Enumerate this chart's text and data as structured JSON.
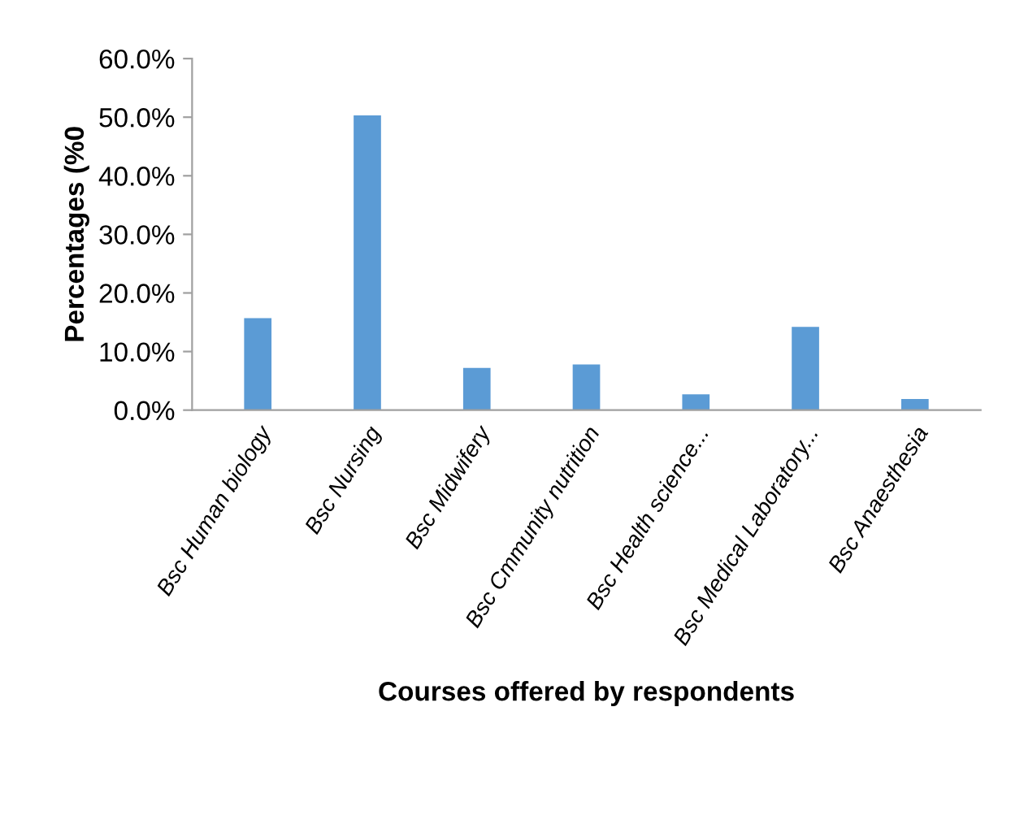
{
  "chart_data": {
    "type": "bar",
    "xlabel": "Courses offered by respondents",
    "ylabel": "Percentages (%0",
    "categories": [
      "Bsc Human biology",
      "Bsc Nursing",
      "Bsc Midwifery",
      "Bsc Cmmunity nutrition",
      "Bsc Health science...",
      "Bsc Medical Laboratory...",
      "Bsc Anaesthesia"
    ],
    "values": [
      15.7,
      50.3,
      7.2,
      7.8,
      2.7,
      14.2,
      1.9
    ],
    "color": "#5b9bd5",
    "ylim": [
      0,
      60
    ],
    "yticks": [
      {
        "value": 0,
        "label": "0.0%"
      },
      {
        "value": 10,
        "label": "10.0%"
      },
      {
        "value": 20,
        "label": "20.0%"
      },
      {
        "value": 30,
        "label": "30.0%"
      },
      {
        "value": 40,
        "label": "40.0%"
      },
      {
        "value": 50,
        "label": "50.0%"
      },
      {
        "value": 60,
        "label": "60.0%"
      }
    ],
    "grid": false
  }
}
